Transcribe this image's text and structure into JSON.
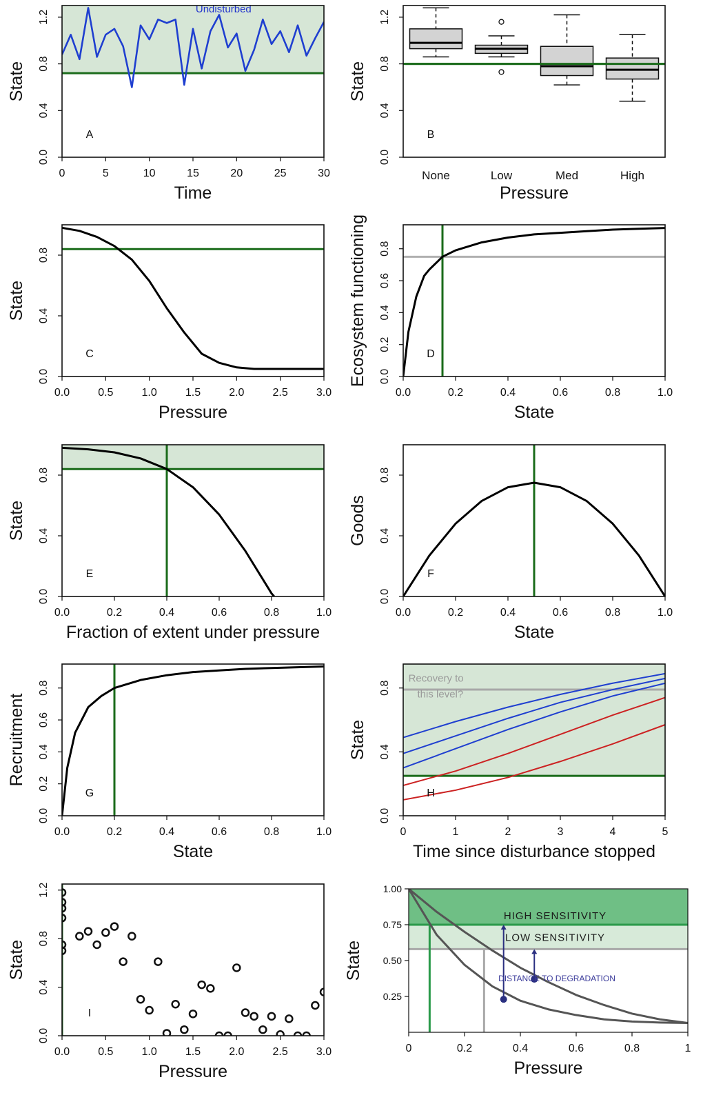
{
  "chart_data": [
    {
      "id": "A",
      "type": "line",
      "panel_letter": "A",
      "xlabel": "Time",
      "ylabel": "State",
      "xlim": [
        0,
        30
      ],
      "ylim": [
        0,
        1.3
      ],
      "xticks": [
        0,
        5,
        10,
        15,
        20,
        25,
        30
      ],
      "yticks": [
        0.0,
        0.4,
        0.8,
        1.2
      ],
      "ytick_labels": [
        "0.0",
        "0.4",
        "0.8",
        "1.2"
      ],
      "shade": {
        "from": 0.72,
        "to": 1.3,
        "color": "#d6e6d6"
      },
      "hlines": [
        {
          "y": 0.72,
          "color": "#1a6b1a"
        }
      ],
      "annotations": [
        {
          "text": "Undisturbed",
          "x": 18.5,
          "y": 1.24,
          "color": "#2233cc"
        }
      ],
      "series": [
        {
          "color": "#1f3fd0",
          "x": [
            0,
            1,
            2,
            3,
            4,
            5,
            6,
            7,
            8,
            9,
            10,
            11,
            12,
            13,
            14,
            15,
            16,
            17,
            18,
            19,
            20,
            21,
            22,
            23,
            24,
            25,
            26,
            27,
            28,
            29,
            30
          ],
          "y": [
            0.88,
            1.05,
            0.84,
            1.28,
            0.86,
            1.05,
            1.1,
            0.95,
            0.6,
            1.13,
            1.01,
            1.18,
            1.15,
            1.18,
            0.62,
            1.1,
            0.76,
            1.08,
            1.22,
            0.94,
            1.06,
            0.74,
            0.92,
            1.18,
            0.97,
            1.08,
            0.9,
            1.13,
            0.87,
            1.02,
            1.16
          ]
        }
      ]
    },
    {
      "id": "B",
      "type": "box",
      "panel_letter": "B",
      "xlabel": "Pressure",
      "ylabel": "State",
      "ylim": [
        0,
        1.3
      ],
      "yticks": [
        0.0,
        0.4,
        0.8,
        1.2
      ],
      "ytick_labels": [
        "0.0",
        "0.4",
        "0.8",
        "1.2"
      ],
      "categories": [
        "None",
        "Low",
        "Med",
        "High"
      ],
      "hlines": [
        {
          "y": 0.8,
          "color": "#1a6b1a"
        }
      ],
      "boxes": [
        {
          "min": 0.86,
          "q1": 0.93,
          "median": 0.98,
          "q3": 1.1,
          "max": 1.28,
          "outliers": []
        },
        {
          "min": 0.86,
          "q1": 0.89,
          "median": 0.93,
          "q3": 0.96,
          "max": 1.04,
          "outliers": [
            1.16,
            0.73
          ]
        },
        {
          "min": 0.62,
          "q1": 0.7,
          "median": 0.78,
          "q3": 0.95,
          "max": 1.22,
          "outliers": []
        },
        {
          "min": 0.48,
          "q1": 0.67,
          "median": 0.75,
          "q3": 0.85,
          "max": 1.05,
          "outliers": []
        }
      ]
    },
    {
      "id": "C",
      "type": "line",
      "panel_letter": "C",
      "xlabel": "Pressure",
      "ylabel": "State",
      "xlim": [
        0,
        3
      ],
      "ylim": [
        0,
        1.0
      ],
      "xticks": [
        0,
        0.5,
        1.0,
        1.5,
        2.0,
        2.5,
        3.0
      ],
      "xtick_labels": [
        "0.0",
        "0.5",
        "1.0",
        "1.5",
        "2.0",
        "2.5",
        "3.0"
      ],
      "yticks": [
        0.0,
        0.4,
        0.8
      ],
      "ytick_labels": [
        "0.0",
        "0.4",
        "0.8"
      ],
      "hlines": [
        {
          "y": 0.84,
          "color": "#1a6b1a"
        }
      ],
      "series": [
        {
          "color": "#000000",
          "x": [
            0,
            0.2,
            0.4,
            0.6,
            0.8,
            1.0,
            1.2,
            1.4,
            1.6,
            1.8,
            2.0,
            2.2,
            2.5,
            3.0
          ],
          "y": [
            0.98,
            0.96,
            0.92,
            0.86,
            0.77,
            0.63,
            0.45,
            0.29,
            0.15,
            0.09,
            0.06,
            0.05,
            0.05,
            0.05
          ]
        }
      ]
    },
    {
      "id": "D",
      "type": "line",
      "panel_letter": "D",
      "xlabel": "State",
      "ylabel": "Ecosystem functioning",
      "xlim": [
        0,
        1
      ],
      "ylim": [
        0,
        0.95
      ],
      "xticks": [
        0,
        0.2,
        0.4,
        0.6,
        0.8,
        1.0
      ],
      "xtick_labels": [
        "0.0",
        "0.2",
        "0.4",
        "0.6",
        "0.8",
        "1.0"
      ],
      "yticks": [
        0.0,
        0.2,
        0.4,
        0.6,
        0.8
      ],
      "ytick_labels": [
        "0.0",
        "0.2",
        "0.4",
        "0.6",
        "0.8"
      ],
      "hlines": [
        {
          "y": 0.75,
          "color": "#b0b0b0"
        }
      ],
      "vlines": [
        {
          "x": 0.15,
          "color": "#1a6b1a"
        }
      ],
      "series": [
        {
          "color": "#000000",
          "x": [
            0,
            0.02,
            0.05,
            0.08,
            0.1,
            0.15,
            0.2,
            0.3,
            0.4,
            0.5,
            0.6,
            0.7,
            0.8,
            0.9,
            1.0
          ],
          "y": [
            0.0,
            0.28,
            0.5,
            0.63,
            0.67,
            0.75,
            0.79,
            0.84,
            0.87,
            0.89,
            0.9,
            0.91,
            0.92,
            0.925,
            0.93
          ]
        }
      ]
    },
    {
      "id": "E",
      "type": "line",
      "panel_letter": "E",
      "xlabel": "Fraction of extent under pressure",
      "ylabel": "State",
      "xlim": [
        0,
        1
      ],
      "ylim": [
        0,
        1.0
      ],
      "xticks": [
        0,
        0.2,
        0.4,
        0.6,
        0.8,
        1.0
      ],
      "xtick_labels": [
        "0.0",
        "0.2",
        "0.4",
        "0.6",
        "0.8",
        "1.0"
      ],
      "yticks": [
        0.0,
        0.4,
        0.8
      ],
      "ytick_labels": [
        "0.0",
        "0.4",
        "0.8"
      ],
      "shade": {
        "from": 0.84,
        "to": 1.0,
        "color": "#d6e6d6"
      },
      "hlines": [
        {
          "y": 0.84,
          "color": "#1a6b1a"
        }
      ],
      "vlines": [
        {
          "x": 0.4,
          "color": "#1a6b1a"
        }
      ],
      "series": [
        {
          "color": "#000000",
          "x": [
            0,
            0.1,
            0.2,
            0.3,
            0.4,
            0.5,
            0.6,
            0.7,
            0.8,
            0.81
          ],
          "y": [
            0.98,
            0.97,
            0.95,
            0.91,
            0.84,
            0.72,
            0.54,
            0.3,
            0.02,
            0.0
          ]
        }
      ]
    },
    {
      "id": "F",
      "type": "line",
      "panel_letter": "F",
      "xlabel": "State",
      "ylabel": "Goods",
      "xlim": [
        0,
        1
      ],
      "ylim": [
        0,
        1.0
      ],
      "xticks": [
        0,
        0.2,
        0.4,
        0.6,
        0.8,
        1.0
      ],
      "xtick_labels": [
        "0.0",
        "0.2",
        "0.4",
        "0.6",
        "0.8",
        "1.0"
      ],
      "yticks": [
        0.0,
        0.4,
        0.8
      ],
      "ytick_labels": [
        "0.0",
        "0.4",
        "0.8"
      ],
      "vlines": [
        {
          "x": 0.5,
          "color": "#1a6b1a"
        }
      ],
      "series": [
        {
          "color": "#000000",
          "x": [
            0,
            0.1,
            0.2,
            0.3,
            0.4,
            0.5,
            0.6,
            0.7,
            0.8,
            0.9,
            1.0
          ],
          "y": [
            0,
            0.27,
            0.48,
            0.63,
            0.72,
            0.75,
            0.72,
            0.63,
            0.48,
            0.27,
            0
          ]
        }
      ]
    },
    {
      "id": "G",
      "type": "line",
      "panel_letter": "G",
      "xlabel": "State",
      "ylabel": "Recruitment",
      "xlim": [
        0,
        1
      ],
      "ylim": [
        0,
        0.95
      ],
      "xticks": [
        0,
        0.2,
        0.4,
        0.6,
        0.8,
        1.0
      ],
      "xtick_labels": [
        "0.0",
        "0.2",
        "0.4",
        "0.6",
        "0.8",
        "1.0"
      ],
      "yticks": [
        0.0,
        0.2,
        0.4,
        0.6,
        0.8
      ],
      "ytick_labels": [
        "0.0",
        "0.2",
        "0.4",
        "0.6",
        "0.8"
      ],
      "vlines": [
        {
          "x": 0.2,
          "color": "#1a6b1a"
        }
      ],
      "series": [
        {
          "color": "#000000",
          "x": [
            0,
            0.02,
            0.05,
            0.1,
            0.15,
            0.2,
            0.3,
            0.4,
            0.5,
            0.6,
            0.7,
            0.8,
            0.9,
            1.0
          ],
          "y": [
            0.0,
            0.3,
            0.52,
            0.68,
            0.75,
            0.8,
            0.85,
            0.88,
            0.9,
            0.91,
            0.92,
            0.925,
            0.93,
            0.935
          ]
        }
      ]
    },
    {
      "id": "H",
      "type": "line",
      "panel_letter": "H",
      "xlabel": "Time since disturbance stopped",
      "ylabel": "State",
      "xlim": [
        0,
        5
      ],
      "ylim": [
        0,
        0.95
      ],
      "xticks": [
        0,
        1,
        2,
        3,
        4,
        5
      ],
      "yticks": [
        0.0,
        0.4,
        0.8
      ],
      "ytick_labels": [
        "0.0",
        "0.4",
        "0.8"
      ],
      "shade": {
        "from": 0.25,
        "to": 0.95,
        "color": "#d6e6d6"
      },
      "hlines": [
        {
          "y": 0.25,
          "color": "#1a6b1a"
        },
        {
          "y": 0.79,
          "color": "#a8a8a8"
        }
      ],
      "annotations": [
        {
          "text": "Recovery to",
          "x": 0.1,
          "y": 0.84,
          "color": "#9a9a9a"
        },
        {
          "text": "this level?",
          "x": 0.27,
          "y": 0.74,
          "color": "#9a9a9a"
        }
      ],
      "series": [
        {
          "color": "#1f3fd0",
          "x": [
            0,
            1,
            2,
            3,
            4,
            5
          ],
          "y": [
            0.49,
            0.59,
            0.68,
            0.76,
            0.83,
            0.89
          ]
        },
        {
          "color": "#1f3fd0",
          "x": [
            0,
            1,
            2,
            3,
            4,
            5
          ],
          "y": [
            0.39,
            0.5,
            0.61,
            0.71,
            0.79,
            0.86
          ]
        },
        {
          "color": "#1f3fd0",
          "x": [
            0,
            1,
            2,
            3,
            4,
            5
          ],
          "y": [
            0.3,
            0.42,
            0.54,
            0.65,
            0.75,
            0.83
          ]
        },
        {
          "color": "#cc2222",
          "x": [
            0,
            1,
            2,
            3,
            4,
            5
          ],
          "y": [
            0.19,
            0.28,
            0.39,
            0.51,
            0.63,
            0.74
          ]
        },
        {
          "color": "#cc2222",
          "x": [
            0,
            1,
            2,
            3,
            4,
            5
          ],
          "y": [
            0.1,
            0.16,
            0.24,
            0.34,
            0.45,
            0.57
          ]
        }
      ]
    },
    {
      "id": "I",
      "type": "scatter",
      "panel_letter": "I",
      "xlabel": "Pressure",
      "ylabel": "State",
      "xlim": [
        0,
        3
      ],
      "ylim": [
        0,
        1.25
      ],
      "xticks": [
        0,
        0.5,
        1.0,
        1.5,
        2.0,
        2.5,
        3.0
      ],
      "xtick_labels": [
        "0.0",
        "0.5",
        "1.0",
        "1.5",
        "2.0",
        "2.5",
        "3.0"
      ],
      "yticks": [
        0.0,
        0.4,
        0.8,
        1.2
      ],
      "ytick_labels": [
        "0.0",
        "0.4",
        "0.8",
        "1.2"
      ],
      "vlines": [
        {
          "x": 0.0,
          "color": "#1a6b1a"
        }
      ],
      "points": [
        [
          0,
          1.18
        ],
        [
          0,
          1.1
        ],
        [
          0,
          1.05
        ],
        [
          0,
          0.97
        ],
        [
          0,
          0.75
        ],
        [
          0,
          0.7
        ],
        [
          0.2,
          0.82
        ],
        [
          0.3,
          0.86
        ],
        [
          0.4,
          0.75
        ],
        [
          0.5,
          0.85
        ],
        [
          0.6,
          0.9
        ],
        [
          0.7,
          0.61
        ],
        [
          0.8,
          0.82
        ],
        [
          0.9,
          0.3
        ],
        [
          1.0,
          0.21
        ],
        [
          1.1,
          0.61
        ],
        [
          1.2,
          0.02
        ],
        [
          1.3,
          0.26
        ],
        [
          1.4,
          0.05
        ],
        [
          1.5,
          0.18
        ],
        [
          1.6,
          0.42
        ],
        [
          1.7,
          0.39
        ],
        [
          1.8,
          0.0
        ],
        [
          1.9,
          0.0
        ],
        [
          2.0,
          0.56
        ],
        [
          2.1,
          0.19
        ],
        [
          2.2,
          0.16
        ],
        [
          2.3,
          0.05
        ],
        [
          2.4,
          0.16
        ],
        [
          2.5,
          0.01
        ],
        [
          2.6,
          0.14
        ],
        [
          2.7,
          0.0
        ],
        [
          2.8,
          0.0
        ],
        [
          2.9,
          0.25
        ],
        [
          3.0,
          0.36
        ]
      ]
    },
    {
      "id": "J",
      "type": "line",
      "xlabel": "Pressure",
      "ylabel": "State",
      "xlim": [
        0,
        1
      ],
      "ylim": [
        0,
        1.0
      ],
      "xticks": [
        0,
        0.2,
        0.4,
        0.6,
        0.8,
        1
      ],
      "xtick_labels": [
        "0",
        "0.2",
        "0.4",
        "0.6",
        "0.8",
        "1"
      ],
      "yticks": [
        0.25,
        0.5,
        0.75,
        1.0
      ],
      "ytick_labels": [
        "0.25",
        "0.50",
        "0.75",
        "1.00"
      ],
      "bands": [
        {
          "from": 0.75,
          "to": 1.0,
          "color": "#6fbf85",
          "label": "HIGH SENSITIVITY"
        },
        {
          "from": 0.58,
          "to": 0.75,
          "color": "#d7ead9",
          "label": "LOW SENSITIVITY"
        }
      ],
      "annotation": "DISTANCE TO DEGRADATION",
      "hlines": [
        {
          "y": 0.75,
          "color": "#2a9a4a"
        },
        {
          "y": 0.58,
          "color": "#a8a8a8"
        }
      ],
      "vlines": [
        {
          "x": 0.075,
          "y_to": 0.75,
          "color": "#2a9a4a"
        },
        {
          "x": 0.27,
          "y_to": 0.58,
          "color": "#a8a8a8"
        }
      ],
      "series": [
        {
          "color": "#555555",
          "x": [
            0,
            0.1,
            0.2,
            0.3,
            0.4,
            0.5,
            0.6,
            0.7,
            0.8,
            0.9,
            1.0
          ],
          "y": [
            1.0,
            0.68,
            0.47,
            0.32,
            0.22,
            0.16,
            0.12,
            0.09,
            0.075,
            0.068,
            0.065
          ]
        },
        {
          "color": "#555555",
          "x": [
            0,
            0.1,
            0.2,
            0.3,
            0.4,
            0.5,
            0.6,
            0.7,
            0.8,
            0.9,
            1.0
          ],
          "y": [
            1.0,
            0.84,
            0.7,
            0.57,
            0.45,
            0.35,
            0.26,
            0.19,
            0.13,
            0.09,
            0.065
          ]
        }
      ],
      "markers": [
        {
          "x": 0.34,
          "y": 0.23,
          "arrow_to": 0.75,
          "color": "#2a2f80"
        },
        {
          "x": 0.45,
          "y": 0.37,
          "arrow_to": 0.58,
          "color": "#2a2f80"
        }
      ]
    }
  ]
}
